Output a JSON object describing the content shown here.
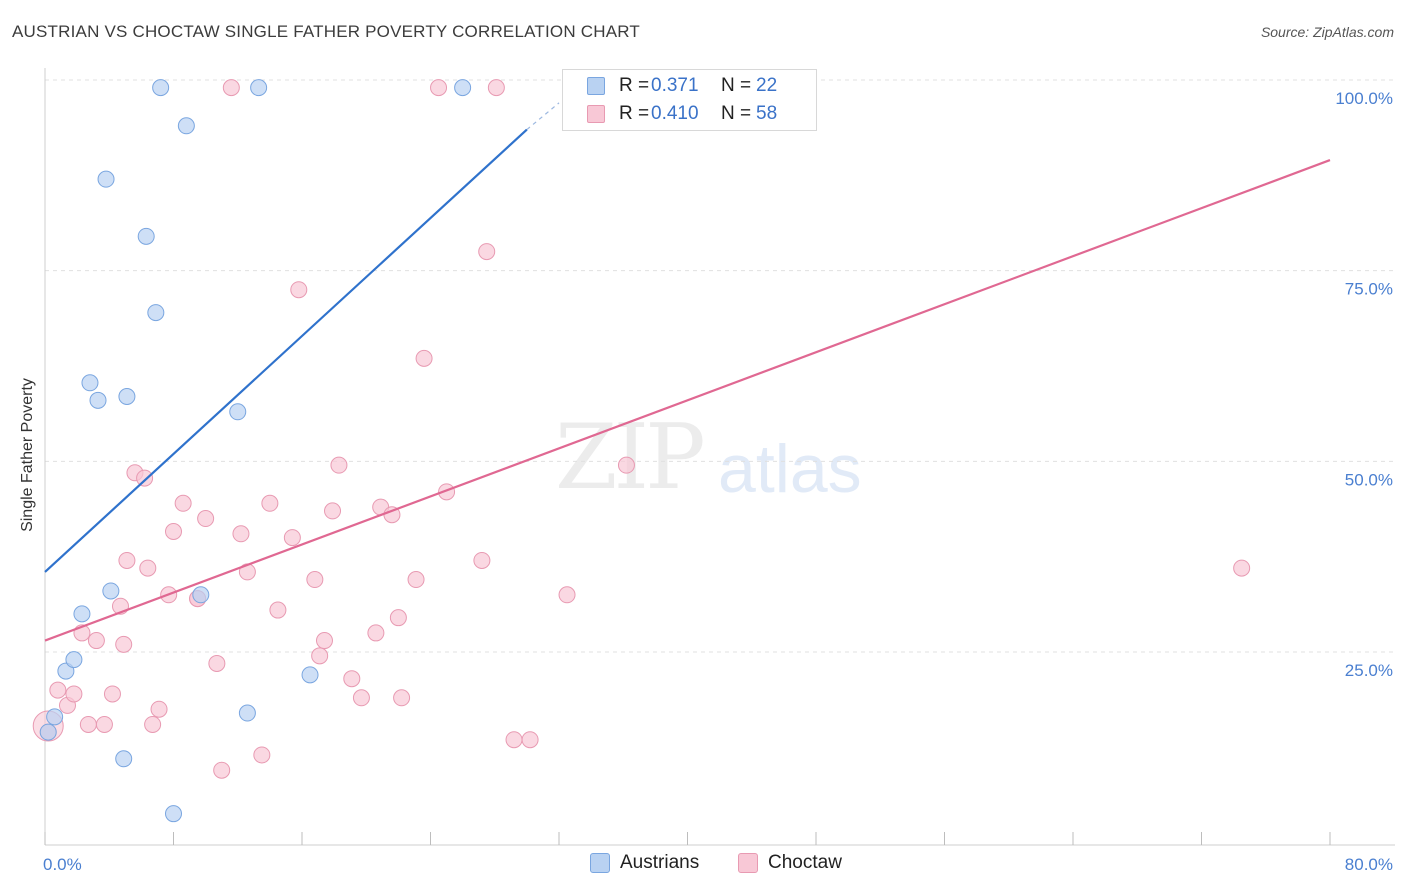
{
  "header": {
    "title": "AUSTRIAN VS CHOCTAW SINGLE FATHER POVERTY CORRELATION CHART",
    "source": "Source: ZipAtlas.com"
  },
  "watermark": {
    "zip": "ZIP",
    "atlas": "atlas"
  },
  "legend": {
    "rows": [
      {
        "r_label": "R =",
        "r_value": "0.371",
        "n_label": "N =",
        "n_value": "22"
      },
      {
        "r_label": "R =",
        "r_value": "0.410",
        "n_label": "N =",
        "n_value": "58"
      }
    ]
  },
  "bottom_legend": {
    "items": [
      "Austrians",
      "Choctaw"
    ]
  },
  "colors": {
    "austrians_fill": "#b9d2f2",
    "austrians_stroke": "#7aa6e0",
    "austrians_line": "#2f72cc",
    "choctaw_fill": "#f8c8d6",
    "choctaw_stroke": "#e89ab2",
    "choctaw_line": "#e06892",
    "tick_text": "#4a7fd0",
    "grid": "#e0e0e0"
  },
  "chart_data": {
    "type": "scatter",
    "title": "AUSTRIAN VS CHOCTAW SINGLE FATHER POVERTY CORRELATION CHART",
    "xlabel": "",
    "ylabel": "Single Father Poverty",
    "xlim": [
      0,
      80
    ],
    "ylim": [
      0,
      100
    ],
    "x_tick_labels": [
      "0.0%",
      "80.0%"
    ],
    "y_tick_labels": [
      {
        "value": 25,
        "label": "25.0%"
      },
      {
        "value": 50,
        "label": "50.0%"
      },
      {
        "value": 75,
        "label": "75.0%"
      },
      {
        "value": 100,
        "label": "100.0%"
      }
    ],
    "grid": true,
    "legend_position": "top-center",
    "series": [
      {
        "name": "Austrians",
        "points": [
          [
            0.2,
            14.5
          ],
          [
            0.6,
            16.5
          ],
          [
            1.3,
            22.5
          ],
          [
            1.8,
            24
          ],
          [
            2.3,
            30
          ],
          [
            4.1,
            33
          ],
          [
            3.3,
            58
          ],
          [
            2.8,
            60.3
          ],
          [
            4.9,
            11
          ],
          [
            3.8,
            87
          ],
          [
            5.1,
            58.5
          ],
          [
            6.3,
            79.5
          ],
          [
            6.9,
            69.5
          ],
          [
            7.2,
            99
          ],
          [
            8.8,
            94
          ],
          [
            8,
            3.8
          ],
          [
            9.7,
            32.5
          ],
          [
            12,
            56.5
          ],
          [
            12.6,
            17
          ],
          [
            13.3,
            99
          ],
          [
            16.5,
            22
          ],
          [
            26,
            99
          ]
        ],
        "trend": {
          "x": [
            0,
            30
          ],
          "y": [
            35.5,
            93.5
          ],
          "dashed_to": [
            32,
            97
          ]
        }
      },
      {
        "name": "Choctaw",
        "points": [
          [
            0.2,
            14.5
          ],
          [
            0.8,
            20
          ],
          [
            1.4,
            18
          ],
          [
            1.8,
            19.5
          ],
          [
            2.3,
            27.5
          ],
          [
            2.7,
            15.5
          ],
          [
            3.2,
            26.5
          ],
          [
            3.7,
            15.5
          ],
          [
            4.2,
            19.5
          ],
          [
            4.7,
            31
          ],
          [
            5.1,
            37
          ],
          [
            5.6,
            48.5
          ],
          [
            6.2,
            47.8
          ],
          [
            6.7,
            15.5
          ],
          [
            7.1,
            17.5
          ],
          [
            7.7,
            32.5
          ],
          [
            8,
            40.8
          ],
          [
            8.6,
            44.5
          ],
          [
            9.5,
            32
          ],
          [
            10,
            42.5
          ],
          [
            10.7,
            23.5
          ],
          [
            11,
            9.5
          ],
          [
            12.2,
            40.5
          ],
          [
            12.6,
            35.5
          ],
          [
            13.5,
            11.5
          ],
          [
            14,
            44.5
          ],
          [
            14.5,
            30.5
          ],
          [
            15.4,
            40
          ],
          [
            15.8,
            72.5
          ],
          [
            16.8,
            34.5
          ],
          [
            17.1,
            24.5
          ],
          [
            17.4,
            26.5
          ],
          [
            17.9,
            43.5
          ],
          [
            18.3,
            49.5
          ],
          [
            19.1,
            21.5
          ],
          [
            19.7,
            19
          ],
          [
            20.6,
            27.5
          ],
          [
            20.9,
            44
          ],
          [
            21.6,
            43
          ],
          [
            22,
            29.5
          ],
          [
            22.2,
            19
          ],
          [
            23.1,
            34.5
          ],
          [
            23.6,
            63.5
          ],
          [
            24.5,
            99
          ],
          [
            25,
            46
          ],
          [
            27.2,
            37
          ],
          [
            27.5,
            77.5
          ],
          [
            28.1,
            99
          ],
          [
            29.2,
            13.5
          ],
          [
            30.2,
            13.5
          ],
          [
            32.5,
            32.5
          ],
          [
            32.8,
            99
          ],
          [
            36.2,
            49.5
          ],
          [
            11.6,
            99
          ],
          [
            74.5,
            36
          ],
          [
            9.5,
            32
          ],
          [
            6.4,
            36
          ],
          [
            4.9,
            26
          ]
        ],
        "trend": {
          "x": [
            0,
            80
          ],
          "y": [
            26.5,
            89.5
          ]
        }
      }
    ]
  }
}
